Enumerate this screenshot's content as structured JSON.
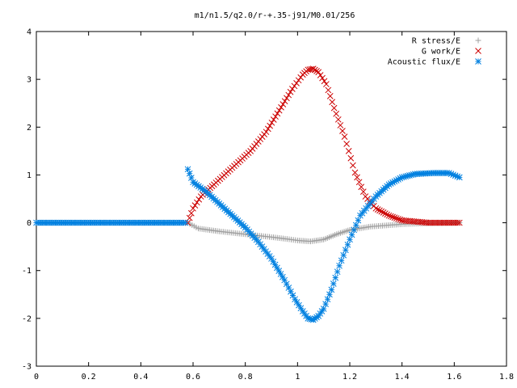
{
  "chart_data": {
    "type": "scatter",
    "title": "m1/n1.5/q2.0/r-+.35-j91/M0.01/256",
    "xlabel": "",
    "ylabel": "",
    "xlim": [
      0,
      1.8
    ],
    "ylim": [
      -3,
      4
    ],
    "xticks": [
      "0",
      "0.2",
      "0.4",
      "0.6",
      "0.8",
      "1",
      "1.2",
      "1.4",
      "1.6",
      "1.8"
    ],
    "yticks": [
      "-3",
      "-2",
      "-1",
      "0",
      "1",
      "2",
      "3",
      "4"
    ],
    "grid": false,
    "legend_position": "top-right",
    "series": [
      {
        "name": "R stress/E",
        "marker": "plus",
        "color": "#a0a0a0",
        "points": [
          [
            0.58,
            0.0
          ],
          [
            0.62,
            -0.12
          ],
          [
            0.7,
            -0.18
          ],
          [
            0.8,
            -0.24
          ],
          [
            0.9,
            -0.3
          ],
          [
            0.96,
            -0.34
          ],
          [
            1.0,
            -0.37
          ],
          [
            1.05,
            -0.39
          ],
          [
            1.1,
            -0.35
          ],
          [
            1.15,
            -0.24
          ],
          [
            1.2,
            -0.15
          ],
          [
            1.28,
            -0.08
          ],
          [
            1.4,
            -0.03
          ],
          [
            1.5,
            -0.01
          ],
          [
            1.62,
            0.0
          ]
        ]
      },
      {
        "name": "G work/E",
        "marker": "cross",
        "color": "#cc0000",
        "points": [
          [
            0.58,
            0.0
          ],
          [
            0.6,
            0.3
          ],
          [
            0.63,
            0.55
          ],
          [
            0.68,
            0.8
          ],
          [
            0.75,
            1.15
          ],
          [
            0.82,
            1.5
          ],
          [
            0.88,
            1.9
          ],
          [
            0.93,
            2.35
          ],
          [
            0.98,
            2.8
          ],
          [
            1.02,
            3.1
          ],
          [
            1.04,
            3.2
          ],
          [
            1.06,
            3.22
          ],
          [
            1.08,
            3.15
          ],
          [
            1.11,
            2.9
          ],
          [
            1.14,
            2.4
          ],
          [
            1.18,
            1.8
          ],
          [
            1.22,
            1.05
          ],
          [
            1.26,
            0.55
          ],
          [
            1.3,
            0.3
          ],
          [
            1.35,
            0.15
          ],
          [
            1.4,
            0.05
          ],
          [
            1.5,
            0.0
          ],
          [
            1.62,
            0.0
          ]
        ]
      },
      {
        "name": "Acoustic flux/E",
        "marker": "star",
        "color": "#0080e0",
        "points": [
          [
            0.0,
            0.0
          ],
          [
            0.2,
            0.0
          ],
          [
            0.4,
            0.0
          ],
          [
            0.57,
            0.0
          ],
          [
            0.58,
            1.12
          ],
          [
            0.6,
            0.85
          ],
          [
            0.65,
            0.65
          ],
          [
            0.7,
            0.4
          ],
          [
            0.75,
            0.15
          ],
          [
            0.8,
            -0.1
          ],
          [
            0.85,
            -0.4
          ],
          [
            0.9,
            -0.75
          ],
          [
            0.95,
            -1.2
          ],
          [
            0.99,
            -1.6
          ],
          [
            1.02,
            -1.85
          ],
          [
            1.04,
            -2.0
          ],
          [
            1.06,
            -2.03
          ],
          [
            1.08,
            -1.95
          ],
          [
            1.1,
            -1.8
          ],
          [
            1.13,
            -1.4
          ],
          [
            1.16,
            -0.9
          ],
          [
            1.2,
            -0.35
          ],
          [
            1.24,
            0.15
          ],
          [
            1.3,
            0.55
          ],
          [
            1.35,
            0.8
          ],
          [
            1.4,
            0.95
          ],
          [
            1.45,
            1.02
          ],
          [
            1.52,
            1.04
          ],
          [
            1.58,
            1.04
          ],
          [
            1.62,
            0.95
          ]
        ]
      }
    ]
  }
}
